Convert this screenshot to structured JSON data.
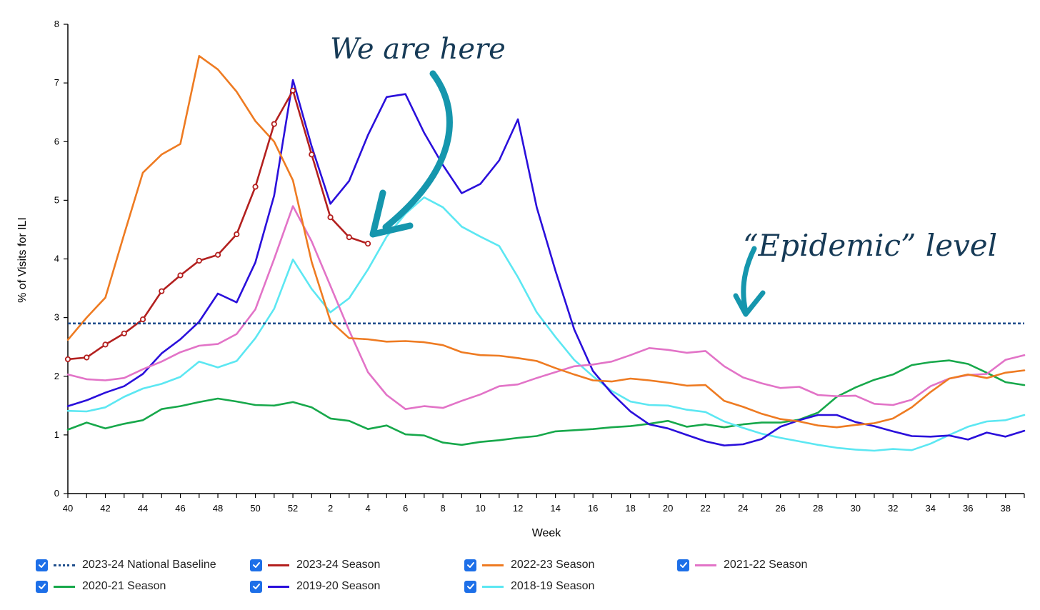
{
  "chart_data": {
    "type": "line",
    "xlabel": "Week",
    "ylabel": "% of Visits for ILI",
    "ylim": [
      0,
      8
    ],
    "yticks": [
      0,
      1,
      2,
      3,
      4,
      5,
      6,
      7,
      8
    ],
    "weeks": [
      40,
      41,
      42,
      43,
      44,
      45,
      46,
      47,
      48,
      49,
      50,
      51,
      52,
      1,
      2,
      3,
      4,
      5,
      6,
      7,
      8,
      9,
      10,
      11,
      12,
      13,
      14,
      15,
      16,
      17,
      18,
      19,
      20,
      21,
      22,
      23,
      24,
      25,
      26,
      27,
      28,
      29,
      30,
      31,
      32,
      33,
      34,
      35,
      36,
      37,
      38,
      39
    ],
    "x_tick_labels": [
      "40",
      "42",
      "44",
      "46",
      "48",
      "50",
      "52",
      "2",
      "4",
      "6",
      "8",
      "10",
      "12",
      "14",
      "16",
      "18",
      "20",
      "22",
      "24",
      "26",
      "28",
      "30",
      "32",
      "34",
      "36",
      "38"
    ],
    "baseline": {
      "name": "2023-24 National Baseline",
      "value": 2.9,
      "color": "#1f4e8c"
    },
    "series": [
      {
        "name": "2023-24 Season",
        "color": "#b3201f",
        "markers": true,
        "values": [
          2.29,
          2.32,
          2.54,
          2.73,
          2.97,
          3.45,
          3.72,
          3.97,
          4.07,
          4.42,
          5.23,
          6.3,
          6.87,
          5.78,
          4.71,
          4.37,
          4.26
        ]
      },
      {
        "name": "2022-23 Season",
        "color": "#ee7b22",
        "values": [
          2.62,
          3.0,
          3.34,
          4.42,
          5.47,
          5.78,
          5.96,
          7.46,
          7.23,
          6.85,
          6.35,
          6.0,
          5.34,
          3.95,
          2.94,
          2.65,
          2.63,
          2.59,
          2.6,
          2.58,
          2.53,
          2.41,
          2.36,
          2.35,
          2.31,
          2.26,
          2.14,
          2.03,
          1.93,
          1.91,
          1.96,
          1.93,
          1.89,
          1.84,
          1.85,
          1.58,
          1.48,
          1.36,
          1.27,
          1.23,
          1.16,
          1.13,
          1.17,
          1.2,
          1.28,
          1.47,
          1.73,
          1.96,
          2.03,
          1.97,
          2.06,
          2.1
        ]
      },
      {
        "name": "2021-22 Season",
        "color": "#e273c7",
        "values": [
          2.03,
          1.95,
          1.93,
          1.97,
          2.12,
          2.25,
          2.41,
          2.52,
          2.55,
          2.72,
          3.14,
          4.0,
          4.9,
          4.3,
          3.54,
          2.78,
          2.07,
          1.68,
          1.44,
          1.49,
          1.46,
          1.58,
          1.69,
          1.83,
          1.86,
          1.97,
          2.07,
          2.17,
          2.2,
          2.25,
          2.36,
          2.48,
          2.45,
          2.4,
          2.43,
          2.17,
          1.98,
          1.88,
          1.8,
          1.82,
          1.68,
          1.66,
          1.67,
          1.53,
          1.51,
          1.6,
          1.83,
          1.96,
          2.02,
          2.04,
          2.28,
          2.36
        ]
      },
      {
        "name": "2020-21 Season",
        "color": "#17a84b",
        "values": [
          1.09,
          1.21,
          1.11,
          1.19,
          1.25,
          1.44,
          1.49,
          1.56,
          1.62,
          1.57,
          1.51,
          1.5,
          1.56,
          1.47,
          1.28,
          1.24,
          1.1,
          1.16,
          1.01,
          0.99,
          0.87,
          0.83,
          0.88,
          0.91,
          0.95,
          0.98,
          1.06,
          1.08,
          1.1,
          1.13,
          1.15,
          1.19,
          1.24,
          1.14,
          1.18,
          1.13,
          1.18,
          1.21,
          1.21,
          1.26,
          1.38,
          1.65,
          1.81,
          1.94,
          2.03,
          2.19,
          2.24,
          2.27,
          2.21,
          2.06,
          1.9,
          1.85
        ]
      },
      {
        "name": "2019-20 Season",
        "color": "#2a0fdb",
        "values": [
          1.49,
          1.59,
          1.72,
          1.83,
          2.04,
          2.39,
          2.63,
          2.93,
          3.41,
          3.26,
          3.94,
          5.08,
          7.05,
          5.92,
          4.94,
          5.33,
          6.11,
          6.76,
          6.81,
          6.15,
          5.6,
          5.12,
          5.28,
          5.68,
          6.38,
          4.88,
          3.8,
          2.8,
          2.09,
          1.71,
          1.4,
          1.18,
          1.11,
          1.0,
          0.89,
          0.82,
          0.84,
          0.93,
          1.14,
          1.25,
          1.34,
          1.34,
          1.22,
          1.15,
          1.06,
          0.98,
          0.97,
          0.99,
          0.92,
          1.04,
          0.97,
          1.07
        ]
      },
      {
        "name": "2018-19 Season",
        "color": "#5ce7f2",
        "values": [
          1.41,
          1.4,
          1.47,
          1.65,
          1.79,
          1.87,
          1.99,
          2.25,
          2.15,
          2.26,
          2.65,
          3.15,
          3.99,
          3.49,
          3.09,
          3.33,
          3.82,
          4.38,
          4.77,
          5.05,
          4.88,
          4.55,
          4.38,
          4.22,
          3.69,
          3.09,
          2.67,
          2.28,
          2.0,
          1.75,
          1.57,
          1.51,
          1.5,
          1.43,
          1.39,
          1.23,
          1.12,
          1.02,
          0.95,
          0.89,
          0.83,
          0.78,
          0.75,
          0.73,
          0.76,
          0.74,
          0.85,
          1.0,
          1.14,
          1.23,
          1.25,
          1.34
        ]
      }
    ],
    "annotations": [
      "We are here",
      "“Epidemic” level"
    ],
    "legend": {
      "items": [
        {
          "label": "2023-24 National Baseline",
          "color": "#1f4e8c",
          "dash": true
        },
        {
          "label": "2023-24 Season",
          "color": "#b3201f"
        },
        {
          "label": "2022-23 Season",
          "color": "#ee7b22"
        },
        {
          "label": "2021-22 Season",
          "color": "#e273c7"
        },
        {
          "label": "2020-21 Season",
          "color": "#17a84b"
        },
        {
          "label": "2019-20 Season",
          "color": "#2a0fdb"
        },
        {
          "label": "2018-19 Season",
          "color": "#5ce7f2"
        }
      ],
      "placement": "bottom"
    },
    "grid": false
  }
}
